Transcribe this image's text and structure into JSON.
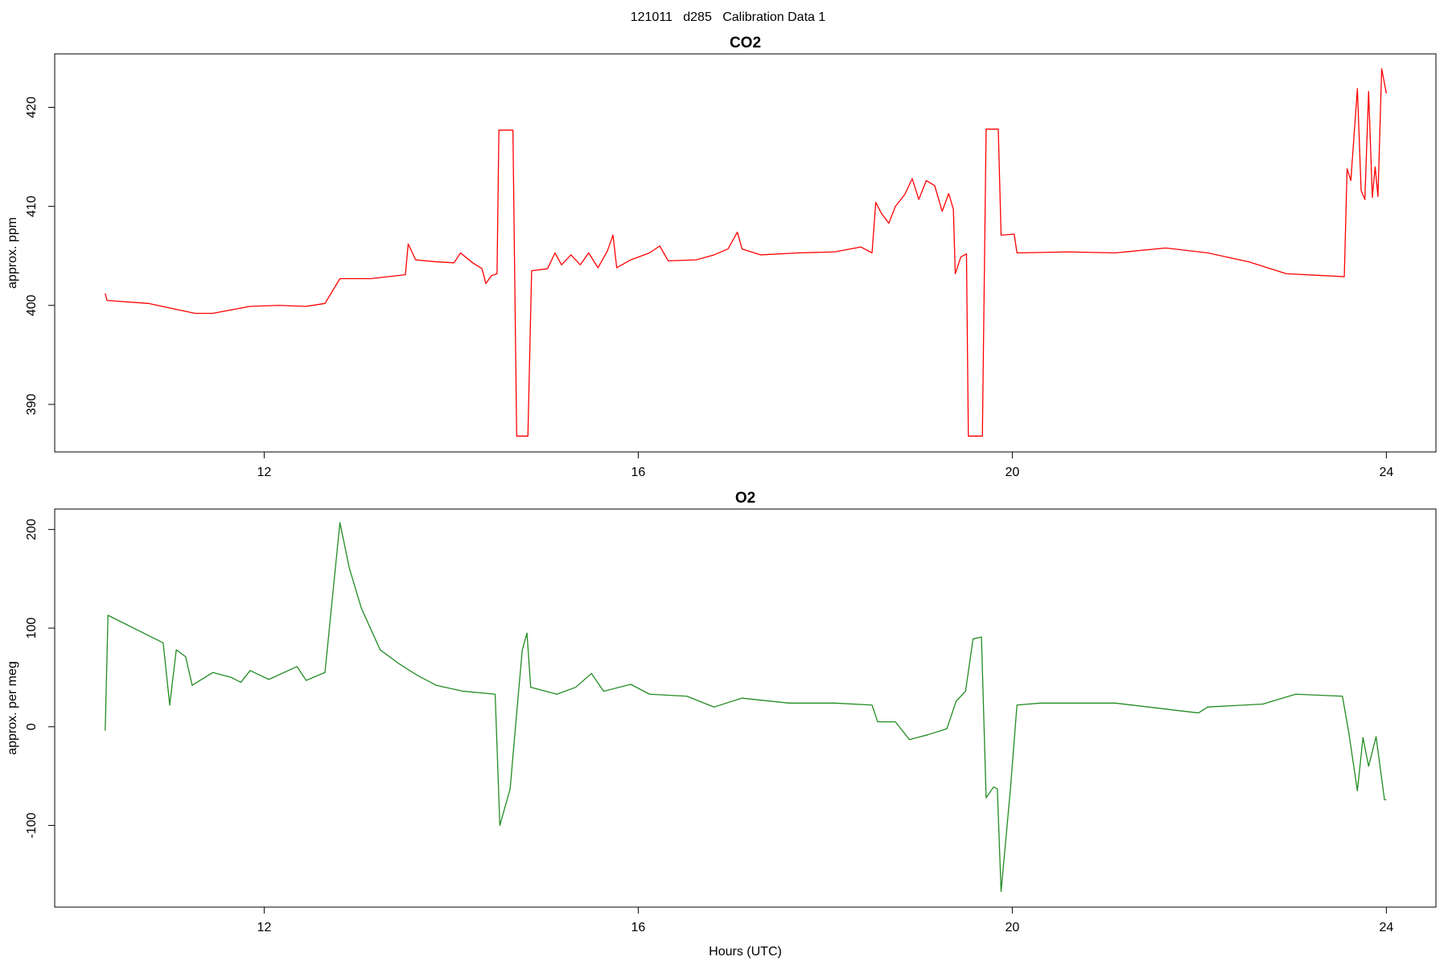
{
  "title": "121011   d285   Calibration Data 1",
  "chart_data": [
    {
      "type": "line",
      "title": "CO2",
      "ylabel": "approx. ppm",
      "color": "#ff0000",
      "xlim": [
        9.76,
        24.53
      ],
      "xticks": [
        12,
        16,
        20,
        24
      ],
      "ylim": [
        385.2,
        425.4
      ],
      "yticks": [
        390,
        400,
        410,
        420
      ],
      "x": [
        10.3,
        10.32,
        10.76,
        11.26,
        11.45,
        11.85,
        12.15,
        12.45,
        12.65,
        12.81,
        13.14,
        13.51,
        13.54,
        13.62,
        13.84,
        14.03,
        14.1,
        14.23,
        14.33,
        14.37,
        14.43,
        14.49,
        14.51,
        14.66,
        14.7,
        14.82,
        14.86,
        15.03,
        15.11,
        15.18,
        15.28,
        15.38,
        15.47,
        15.57,
        15.67,
        15.73,
        15.77,
        15.92,
        16.12,
        16.23,
        16.32,
        16.62,
        16.81,
        16.96,
        17.06,
        17.11,
        17.31,
        17.71,
        18.1,
        18.38,
        18.5,
        18.54,
        18.6,
        18.68,
        18.75,
        18.85,
        18.93,
        19.0,
        19.08,
        19.17,
        19.25,
        19.32,
        19.37,
        19.39,
        19.45,
        19.51,
        19.53,
        19.68,
        19.72,
        19.85,
        19.88,
        20.02,
        20.05,
        20.6,
        21.1,
        21.64,
        22.09,
        22.53,
        22.93,
        23.55,
        23.58,
        23.62,
        23.69,
        23.73,
        23.77,
        23.81,
        23.85,
        23.88,
        23.91,
        23.95,
        24.0
      ],
      "values": [
        401.2,
        400.5,
        400.2,
        399.2,
        399.2,
        399.9,
        400.0,
        399.9,
        400.2,
        402.7,
        402.7,
        403.1,
        406.2,
        404.6,
        404.4,
        404.3,
        405.3,
        404.3,
        403.7,
        402.2,
        403.0,
        403.2,
        417.7,
        417.7,
        386.8,
        386.8,
        403.5,
        403.7,
        405.3,
        404.1,
        405.1,
        404.1,
        405.3,
        403.8,
        405.5,
        407.1,
        403.8,
        404.6,
        405.3,
        406.0,
        404.5,
        404.6,
        405.1,
        405.7,
        407.4,
        405.7,
        405.1,
        405.3,
        405.4,
        405.9,
        405.3,
        410.4,
        409.3,
        408.3,
        410.0,
        411.2,
        412.8,
        410.7,
        412.6,
        412.1,
        409.5,
        411.3,
        409.7,
        403.2,
        404.9,
        405.2,
        386.8,
        386.8,
        417.8,
        417.8,
        407.1,
        407.2,
        405.3,
        405.4,
        405.3,
        405.8,
        405.3,
        404.4,
        403.2,
        402.9,
        413.8,
        412.6,
        421.9,
        411.6,
        410.7,
        421.6,
        410.9,
        414.0,
        411.0,
        423.9,
        421.4
      ]
    },
    {
      "type": "line",
      "title": "O2",
      "ylabel": "approx. per meg",
      "xlabel": "Hours (UTC)",
      "color": "#228b22",
      "xlim": [
        9.76,
        24.53
      ],
      "xticks": [
        12,
        16,
        20,
        24
      ],
      "ylim": [
        -182.8,
        220.7
      ],
      "yticks": [
        -100,
        0,
        100,
        200
      ],
      "x": [
        10.3,
        10.33,
        10.92,
        10.99,
        11.06,
        11.16,
        11.23,
        11.45,
        11.65,
        11.75,
        11.85,
        12.05,
        12.35,
        12.45,
        12.65,
        12.81,
        12.91,
        13.04,
        13.24,
        13.44,
        13.64,
        13.84,
        14.13,
        14.47,
        14.52,
        14.63,
        14.69,
        14.76,
        14.81,
        14.85,
        15.13,
        15.33,
        15.5,
        15.63,
        15.92,
        16.12,
        16.52,
        16.81,
        17.11,
        17.61,
        18.1,
        18.5,
        18.56,
        18.75,
        18.9,
        19.1,
        19.3,
        19.4,
        19.5,
        19.58,
        19.67,
        19.72,
        19.8,
        19.84,
        19.88,
        19.98,
        20.05,
        20.3,
        21.1,
        21.99,
        22.09,
        22.68,
        23.03,
        23.53,
        23.6,
        23.69,
        23.75,
        23.81,
        23.89,
        23.98,
        24.0
      ],
      "values": [
        -4,
        113,
        85,
        22,
        78,
        71,
        42,
        55,
        50,
        45,
        57,
        48,
        61,
        47,
        55,
        207,
        161,
        120,
        78,
        64,
        52,
        42,
        36,
        33,
        -100,
        -63,
        3,
        78,
        95,
        40,
        33,
        40,
        54,
        36,
        43,
        33,
        31,
        20,
        29,
        24,
        24,
        22,
        5,
        5,
        -13,
        -8,
        -2,
        26,
        36,
        89,
        91,
        -72,
        -61,
        -63,
        -167,
        -63,
        22,
        24,
        24,
        14,
        20,
        23,
        33,
        31,
        -7,
        -65,
        -11,
        -40,
        -10,
        -74,
        -74
      ]
    }
  ]
}
